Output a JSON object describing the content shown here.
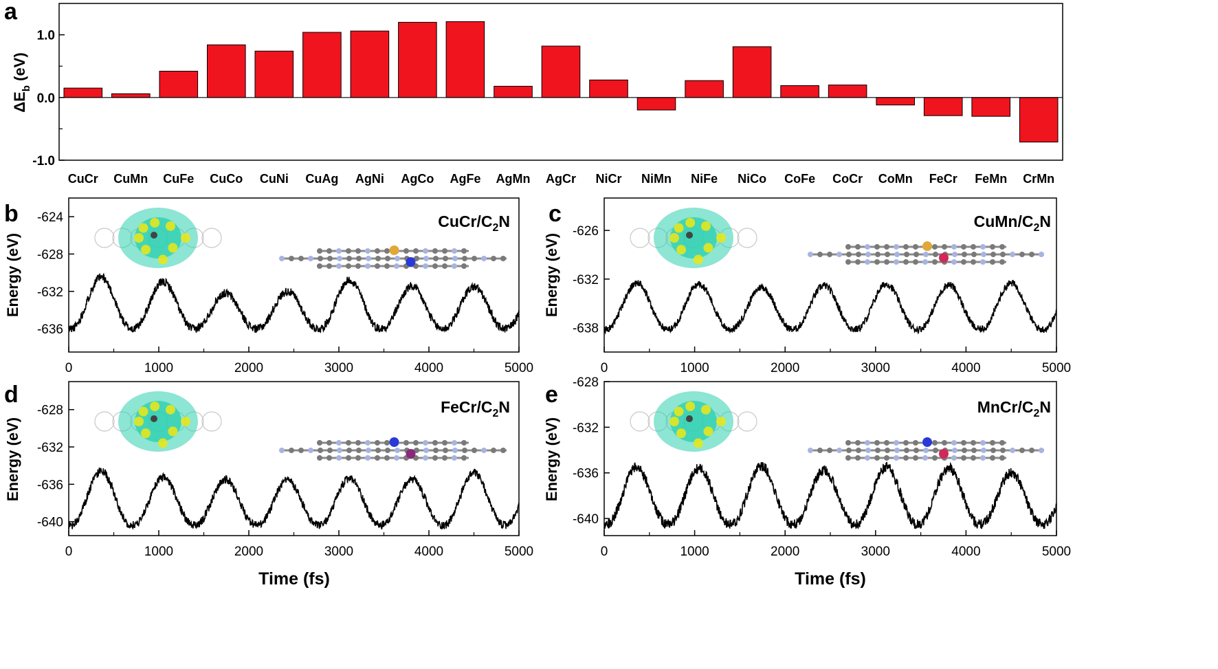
{
  "colors": {
    "bar": "#f0141e",
    "line": "#000000",
    "charge_cyan": "#2fd0b0",
    "charge_yellow": "#e6e61e",
    "atom_c": "#7a7a7a",
    "atom_n": "#a8b4e0",
    "atom_cu": "#e0a838",
    "atom_cr": "#2a3ad6",
    "atom_mn": "#d0285a",
    "atom_fe": "#8a2a7a"
  },
  "chart_data": [
    {
      "id": "a",
      "type": "bar",
      "panel_label": "a",
      "ylabel_main": "ΔE",
      "ylabel_sub": "b",
      "ylabel_unit": " (eV)",
      "yticks": [
        "1.0",
        "0.0",
        "-1.0"
      ],
      "ylim": [
        -1.0,
        1.5
      ],
      "categories": [
        "CuCr",
        "CuMn",
        "CuFe",
        "CuCo",
        "CuNi",
        "CuAg",
        "AgNi",
        "AgCo",
        "AgFe",
        "AgMn",
        "AgCr",
        "NiCr",
        "NiMn",
        "NiFe",
        "NiCo",
        "CoFe",
        "CoCr",
        "CoMn",
        "FeCr",
        "FeMn",
        "CrMn"
      ],
      "values": [
        0.15,
        0.06,
        0.42,
        0.84,
        0.74,
        1.04,
        1.06,
        1.2,
        1.21,
        0.18,
        0.82,
        0.28,
        -0.2,
        0.27,
        0.81,
        0.19,
        0.2,
        -0.12,
        -0.29,
        -0.3,
        -0.71
      ]
    },
    {
      "id": "b",
      "type": "line",
      "panel_label": "b",
      "system_main": "CuCr/C",
      "system_sub": "2",
      "system_tail": "N",
      "ylabel": "Energy (eV)",
      "yticks": [
        "-624",
        "-628",
        "-632",
        "-636"
      ],
      "ylim": [
        -638.5,
        -622
      ],
      "xticks": [
        "0",
        "1000",
        "2000",
        "3000",
        "4000",
        "5000"
      ],
      "xlim": [
        0,
        5000
      ],
      "period_fs": 690,
      "first_peak_fs": 360,
      "baseline_eV": -636,
      "peaks_eV": [
        -630.5,
        -631.0,
        -632.2,
        -632.0,
        -630.8,
        -631.5,
        -631.5
      ]
    },
    {
      "id": "c",
      "type": "line",
      "panel_label": "c",
      "system_main": "CuMn/C",
      "system_sub": "2",
      "system_tail": "N",
      "ylabel": "Energy (eV)",
      "yticks": [
        "-626",
        "-632",
        "-638"
      ],
      "ylim": [
        -641,
        -622
      ],
      "xticks": [
        "0",
        "1000",
        "2000",
        "3000",
        "4000",
        "5000"
      ],
      "xlim": [
        0,
        5000
      ],
      "period_fs": 690,
      "first_peak_fs": 360,
      "baseline_eV": -638.2,
      "peaks_eV": [
        -632.5,
        -632.6,
        -633.0,
        -632.8,
        -632.6,
        -632.7,
        -632.5
      ]
    },
    {
      "id": "d",
      "type": "line",
      "panel_label": "d",
      "system_main": "FeCr/C",
      "system_sub": "2",
      "system_tail": "N",
      "ylabel": "Energy (eV)",
      "yticks": [
        "-628",
        "-632",
        "-636",
        "-640"
      ],
      "ylim": [
        -641.5,
        -625
      ],
      "xticks": [
        "0",
        "1000",
        "2000",
        "3000",
        "4000",
        "5000"
      ],
      "xlim": [
        0,
        5000
      ],
      "xlabel": "Time (fs)",
      "period_fs": 690,
      "first_peak_fs": 360,
      "baseline_eV": -640.4,
      "peaks_eV": [
        -634.6,
        -635.3,
        -635.5,
        -635.6,
        -635.4,
        -635.5,
        -634.8
      ]
    },
    {
      "id": "e",
      "type": "line",
      "panel_label": "e",
      "system_main": "MnCr/C",
      "system_sub": "2",
      "system_tail": "N",
      "ylabel": "Energy (eV)",
      "yticks": [
        "-628",
        "-632",
        "-636",
        "-640"
      ],
      "ylim": [
        -641.5,
        -628
      ],
      "xticks": [
        "0",
        "1000",
        "2000",
        "3000",
        "4000",
        "5000"
      ],
      "xlim": [
        0,
        5000
      ],
      "xlabel": "Time (fs)",
      "period_fs": 690,
      "first_peak_fs": 360,
      "baseline_eV": -640.5,
      "peaks_eV": [
        -635.5,
        -635.6,
        -635.4,
        -635.8,
        -635.5,
        -635.6,
        -636.0
      ]
    }
  ]
}
